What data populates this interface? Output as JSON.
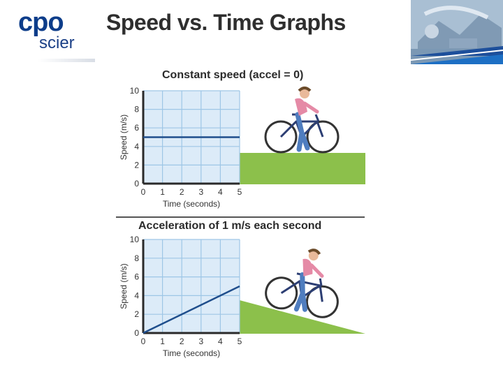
{
  "header": {
    "logo_text_top": "cpo",
    "logo_text_bottom": "scier",
    "title": "Speed vs. Time Graphs"
  },
  "colors": {
    "accent": "#0d3d8a",
    "grid_bg": "#dcebf8",
    "grid_line": "#9ec6e6",
    "series_line": "#1f4e8c",
    "ground": "#8cc04b"
  },
  "illustration": {
    "top_icon": "cyclist-flat-ground-icon",
    "bottom_icon": "cyclist-downhill-icon"
  },
  "chart_data": [
    {
      "type": "line",
      "title": "Constant speed (accel = 0)",
      "xlabel": "Time (seconds)",
      "ylabel": "Speed (m/s)",
      "xlim": [
        0,
        5
      ],
      "ylim": [
        0,
        10
      ],
      "x_ticks": [
        "0",
        "1",
        "2",
        "3",
        "4",
        "5"
      ],
      "y_ticks": [
        "0",
        "2",
        "4",
        "6",
        "8",
        "10"
      ],
      "grid": true,
      "series": [
        {
          "x": [
            0,
            5
          ],
          "y": [
            5,
            5
          ]
        }
      ]
    },
    {
      "type": "line",
      "title": "Acceleration of 1 m/s each second",
      "xlabel": "Time (seconds)",
      "ylabel": "Speed (m/s)",
      "xlim": [
        0,
        5
      ],
      "ylim": [
        0,
        10
      ],
      "x_ticks": [
        "0",
        "1",
        "2",
        "3",
        "4",
        "5"
      ],
      "y_ticks": [
        "0",
        "2",
        "4",
        "6",
        "8",
        "10"
      ],
      "grid": true,
      "series": [
        {
          "x": [
            0,
            5
          ],
          "y": [
            0,
            5
          ]
        }
      ]
    }
  ]
}
